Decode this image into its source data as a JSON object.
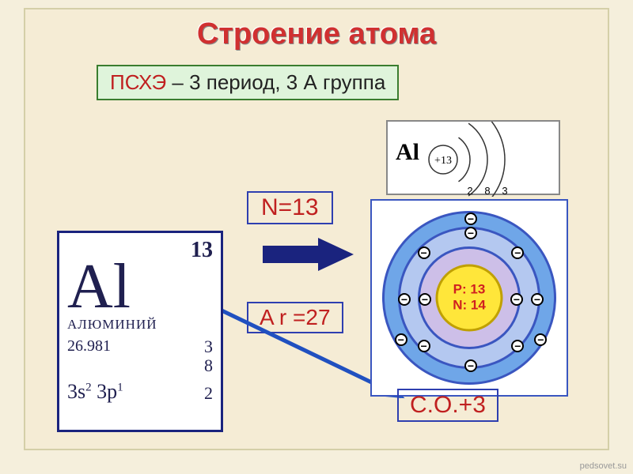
{
  "title": "Строение атома",
  "pshe": {
    "highlight": "ПСХЭ",
    "rest": " – 3 период, 3 А группа"
  },
  "bohr_mini": {
    "label": "Al",
    "nucleus_text": "+13",
    "shells": [
      2,
      8,
      3
    ],
    "shell_radii": [
      34,
      56,
      78
    ],
    "stroke": "#333333"
  },
  "n_box": "N=13",
  "ar_box": "A r =27",
  "co_box": "С.О.+3",
  "element": {
    "atomic_number": "13",
    "symbol": "Al",
    "name": "АЛЮМИНИЙ",
    "mass": "26.981",
    "col_right": [
      "3",
      "8",
      "2"
    ],
    "config_html": "3s<sup>2</sup> 3p<sup>1</sup>",
    "config_last": "2"
  },
  "atom": {
    "shells": [
      {
        "d": 220,
        "fill": "#6fa6e8",
        "stroke": "#3a56c0",
        "electrons": 3
      },
      {
        "d": 180,
        "fill": "#b4c8f0",
        "stroke": "#3a56c0",
        "electrons": 8
      },
      {
        "d": 130,
        "fill": "#cdbfe8",
        "stroke": "#3a56c0",
        "electrons": 2
      },
      {
        "d": 85,
        "fill": "#ffe63a",
        "stroke": "#c0a000",
        "electrons": 0
      }
    ],
    "nucleus": {
      "p": "P: 13",
      "n": "N: 14"
    }
  },
  "arrows": {
    "blue_thick": {
      "fill": "#1a237e"
    },
    "blue_line": {
      "stroke": "#2050c0",
      "width": 5
    }
  },
  "watermark": "pedsovet.su"
}
